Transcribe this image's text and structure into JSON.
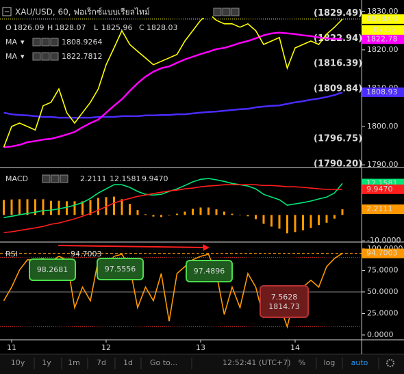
{
  "chart_data": [
    {
      "type": "line",
      "title": "XAU/USD, 60, ฟอเร็กซ์แบบเรียลไทม์",
      "ohlc_labels": [
        "O",
        "H",
        "L",
        "C"
      ],
      "ohlc": [
        1826.09,
        1828.07,
        1825.96,
        1828.03
      ],
      "color": "#ffff00",
      "values": [
        1794.6,
        1800.0,
        1800.9,
        1800.0,
        1799.1,
        1805.4,
        1806.3,
        1809.8,
        1803.6,
        1800.9,
        1803.6,
        1806.3,
        1809.8,
        1816.1,
        1820.5,
        1825.0,
        1821.4,
        1819.6,
        1817.9,
        1816.1,
        1817.0,
        1817.9,
        1818.8,
        1822.3,
        1825.0,
        1827.7,
        1829.5,
        1827.7,
        1826.8,
        1826.8,
        1825.9,
        1826.8,
        1825.0,
        1821.4,
        1822.3,
        1823.2,
        1815.2,
        1820.5,
        1821.4,
        1822.3,
        1821.4,
        1824.1,
        1825.9,
        1828.0
      ],
      "series": [
        {
          "name": "MA",
          "color": "#4a2cff",
          "last_value": 1808.9264,
          "axis_value": 1808.93,
          "values": [
            1803.6,
            1803.2,
            1803.0,
            1802.9,
            1802.7,
            1802.5,
            1802.5,
            1802.3,
            1802.3,
            1802.3,
            1802.3,
            1802.3,
            1802.5,
            1802.5,
            1802.5,
            1802.7,
            1802.7,
            1802.7,
            1802.9,
            1802.9,
            1803.0,
            1803.0,
            1803.2,
            1803.2,
            1803.4,
            1803.6,
            1803.8,
            1803.9,
            1804.1,
            1804.3,
            1804.5,
            1804.6,
            1805.0,
            1805.2,
            1805.4,
            1805.5,
            1805.9,
            1806.3,
            1806.6,
            1807.0,
            1807.3,
            1807.7,
            1808.2,
            1808.9
          ]
        },
        {
          "name": "MA",
          "color": "#ff00ff",
          "last_value": 1822.7812,
          "axis_value": 1822.78,
          "values": [
            1794.6,
            1794.8,
            1795.2,
            1795.9,
            1796.2,
            1796.6,
            1796.8,
            1797.3,
            1797.9,
            1798.6,
            1799.8,
            1800.9,
            1801.8,
            1803.6,
            1805.4,
            1807.1,
            1809.3,
            1811.3,
            1813.0,
            1814.3,
            1815.2,
            1815.7,
            1816.6,
            1817.5,
            1818.2,
            1818.9,
            1819.5,
            1820.2,
            1820.5,
            1821.1,
            1821.8,
            1822.3,
            1823.0,
            1823.8,
            1824.3,
            1824.5,
            1824.3,
            1824.1,
            1823.8,
            1823.6,
            1823.2,
            1823.0,
            1822.9,
            1822.8
          ]
        }
      ],
      "last_price": 1828.03,
      "countdown": "07:19",
      "ylim": [
        1789.3,
        1833.0
      ],
      "yticks": [
        {
          "value": 1790,
          "label": "1790.00"
        },
        {
          "value": 1800,
          "label": "1800.00"
        },
        {
          "value": 1810,
          "label": "1810.00"
        },
        {
          "value": 1820,
          "label": "1820.00"
        },
        {
          "value": 1830,
          "label": "1830.00"
        }
      ],
      "fib_color": "#26a9b8",
      "fib_levels": [
        {
          "value": 1829.49,
          "label": "(1829.49)"
        },
        {
          "value": 1822.94,
          "label": "(1822.94)"
        },
        {
          "value": 1816.39,
          "label": "(1816.39)"
        },
        {
          "value": 1809.84,
          "label": "(1809.84)"
        },
        {
          "value": 1796.75,
          "label": "(1796.75)"
        },
        {
          "value": 1790.2,
          "label": "(1790.20)"
        }
      ]
    },
    {
      "type": "macd",
      "title": "MACD",
      "ylim": [
        -10.2,
        18.1
      ],
      "yticks": [
        {
          "value": -10,
          "label": "-10.0000"
        }
      ],
      "histogram": {
        "color": "#ff9800",
        "last_value": 2.2111,
        "values": [
          5.8,
          6.0,
          6.1,
          6.1,
          6.1,
          6.1,
          5.5,
          5.5,
          5.3,
          5.3,
          5.3,
          5.8,
          6.6,
          6.9,
          7.1,
          6.1,
          4.3,
          1.9,
          0.3,
          -0.6,
          -0.8,
          -0.2,
          0.5,
          1.3,
          2.4,
          2.9,
          2.9,
          2.2,
          1.3,
          0.5,
          0.0,
          -0.5,
          -1.6,
          -3.4,
          -4.5,
          -5.3,
          -7.1,
          -6.6,
          -5.9,
          -5.0,
          -3.9,
          -3.0,
          -1.4,
          2.2
        ]
      },
      "series": [
        {
          "color": "#00e676",
          "last_value": 12.1581,
          "values": [
            -1.0,
            -0.5,
            0.1,
            0.6,
            1.1,
            1.7,
            1.9,
            2.4,
            3.0,
            3.8,
            4.8,
            6.4,
            8.5,
            10.1,
            11.7,
            11.7,
            10.7,
            9.1,
            8.0,
            7.7,
            8.0,
            9.1,
            10.1,
            11.4,
            12.8,
            13.8,
            14.1,
            13.6,
            13.0,
            12.2,
            11.7,
            11.2,
            10.1,
            8.0,
            6.9,
            5.9,
            3.8,
            4.3,
            4.8,
            5.4,
            6.2,
            6.9,
            8.5,
            12.2
          ]
        },
        {
          "color": "#ff1e1e",
          "last_value": {
            "value": 9.947,
            "label": "9.9470"
          },
          "values": [
            -6.8,
            -6.5,
            -6.0,
            -5.5,
            -5.0,
            -4.4,
            -3.6,
            -3.1,
            -2.3,
            -1.5,
            -0.5,
            0.6,
            1.9,
            3.2,
            4.6,
            5.6,
            6.4,
            7.2,
            7.7,
            8.3,
            8.8,
            9.3,
            9.6,
            10.1,
            10.4,
            10.9,
            11.2,
            11.4,
            11.7,
            11.7,
            11.7,
            11.7,
            11.7,
            11.4,
            11.4,
            11.2,
            10.9,
            10.9,
            10.7,
            10.4,
            10.1,
            9.9,
            9.9,
            9.9
          ]
        }
      ]
    },
    {
      "type": "rsi",
      "title": "RSI",
      "color": "#ff9800",
      "last_value": 94.7003,
      "values": [
        39.7,
        55.6,
        75.4,
        87.3,
        87.3,
        88.9,
        85.7,
        91.3,
        87.3,
        31.7,
        55.6,
        39.7,
        87.3,
        79.4,
        91.3,
        93.7,
        79.4,
        31.7,
        55.6,
        39.7,
        71.4,
        15.9,
        71.4,
        79.4,
        87.3,
        91.3,
        93.7,
        71.4,
        23.8,
        55.6,
        31.7,
        71.4,
        55.6,
        19.8,
        55.6,
        35.7,
        9.5,
        47.6,
        55.6,
        63.5,
        55.6,
        79.4,
        88.9,
        94.7
      ],
      "categories": [
        null,
        "11",
        null,
        null,
        null,
        null,
        null,
        null,
        null,
        null,
        null,
        null,
        null,
        "12",
        null,
        null,
        null,
        null,
        null,
        null,
        null,
        null,
        null,
        null,
        null,
        "13",
        null,
        null,
        null,
        null,
        null,
        null,
        null,
        null,
        null,
        null,
        null,
        "14",
        null,
        null,
        null,
        null,
        null,
        null
      ],
      "ylim": [
        -5.6,
        107.1
      ],
      "yticks": [
        {
          "value": 0,
          "label": "0.0000"
        },
        {
          "value": 25,
          "label": "25.0000"
        },
        {
          "value": 50,
          "label": "50.0000"
        },
        {
          "value": 75,
          "label": "75.0000"
        },
        {
          "value": 100,
          "label": "100.0000"
        }
      ],
      "levels": [
        90,
        10
      ],
      "annotations": [
        98.2681,
        97.5556,
        97.4896
      ],
      "low_annotation": [
        7.5628,
        1814.73
      ]
    }
  ],
  "toolbar": {
    "ranges": [
      "10y",
      "1y",
      "1m",
      "7d",
      "1d"
    ],
    "goto": "Go to...",
    "clock": "12:52:41 (UTC+7)",
    "options": [
      "%",
      "log",
      "auto"
    ]
  }
}
